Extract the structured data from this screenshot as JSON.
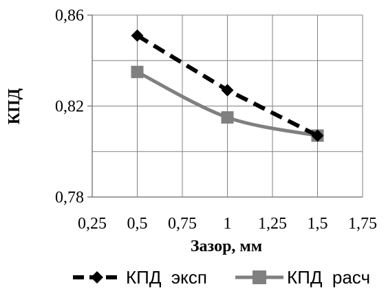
{
  "chart_data": {
    "type": "line",
    "xlabel": "Зазор, мм",
    "ylabel": "КПД",
    "xlim": [
      0.25,
      1.75
    ],
    "ylim": [
      0.78,
      0.86
    ],
    "x_ticks": [
      0.25,
      0.5,
      0.75,
      1,
      1.25,
      1.5,
      1.75
    ],
    "x_tick_labels": [
      "0,25",
      "0,5",
      "0,75",
      "1",
      "1,25",
      "1,5",
      "1,75"
    ],
    "y_ticks": [
      0.78,
      0.82,
      0.86
    ],
    "y_tick_labels": [
      "0,78",
      "0,82",
      "0,86"
    ],
    "grid": true,
    "legend_position": "bottom",
    "series": [
      {
        "name": "КПД  эксп",
        "x": [
          0.5,
          1,
          1.5
        ],
        "values": [
          0.851,
          0.827,
          0.807
        ],
        "color": "#000000",
        "line_style": "dashed",
        "marker": "diamond",
        "smooth": false
      },
      {
        "name": "КПД  расч",
        "x": [
          0.5,
          1,
          1.5
        ],
        "values": [
          0.835,
          0.815,
          0.807
        ],
        "color": "#808080",
        "line_style": "solid",
        "marker": "square",
        "smooth": true
      }
    ]
  }
}
